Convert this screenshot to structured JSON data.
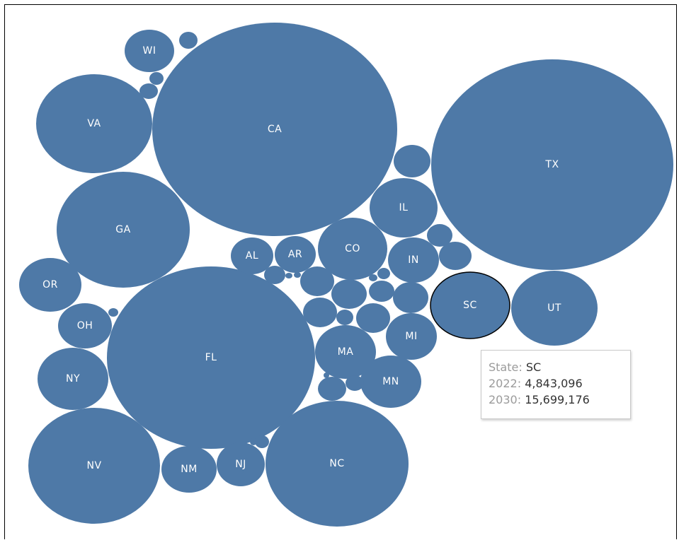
{
  "chart_data": {
    "type": "bubble",
    "color": "#4e79a7",
    "highlight_outline": "#000000",
    "bubbles": [
      {
        "label": "CA"
      },
      {
        "label": "TX"
      },
      {
        "label": "FL"
      },
      {
        "label": "NC"
      },
      {
        "label": "NV"
      },
      {
        "label": "GA"
      },
      {
        "label": "VA"
      },
      {
        "label": "SC",
        "highlighted": true
      },
      {
        "label": "UT"
      },
      {
        "label": "NY"
      },
      {
        "label": "IL"
      },
      {
        "label": "CO"
      },
      {
        "label": "OR"
      },
      {
        "label": "MA"
      },
      {
        "label": "MN"
      },
      {
        "label": "NM"
      },
      {
        "label": "OH"
      },
      {
        "label": "IN"
      },
      {
        "label": "WI"
      },
      {
        "label": "MI"
      },
      {
        "label": "NJ"
      },
      {
        "label": "AR"
      },
      {
        "label": "AL"
      },
      {
        "label": ""
      },
      {
        "label": ""
      },
      {
        "label": ""
      },
      {
        "label": ""
      },
      {
        "label": ""
      },
      {
        "label": ""
      },
      {
        "label": ""
      },
      {
        "label": ""
      },
      {
        "label": ""
      },
      {
        "label": ""
      },
      {
        "label": ""
      },
      {
        "label": ""
      },
      {
        "label": ""
      },
      {
        "label": ""
      },
      {
        "label": ""
      },
      {
        "label": ""
      },
      {
        "label": ""
      },
      {
        "label": ""
      },
      {
        "label": ""
      },
      {
        "label": ""
      },
      {
        "label": ""
      },
      {
        "label": ""
      },
      {
        "label": ""
      },
      {
        "label": ""
      },
      {
        "label": ""
      },
      {
        "label": ""
      }
    ]
  },
  "tooltip": {
    "state_label": "State:",
    "state_value": "SC",
    "row1_label": "2022:",
    "row1_value": "4,843,096",
    "row2_label": "2030:",
    "row2_value": "15,699,176"
  }
}
